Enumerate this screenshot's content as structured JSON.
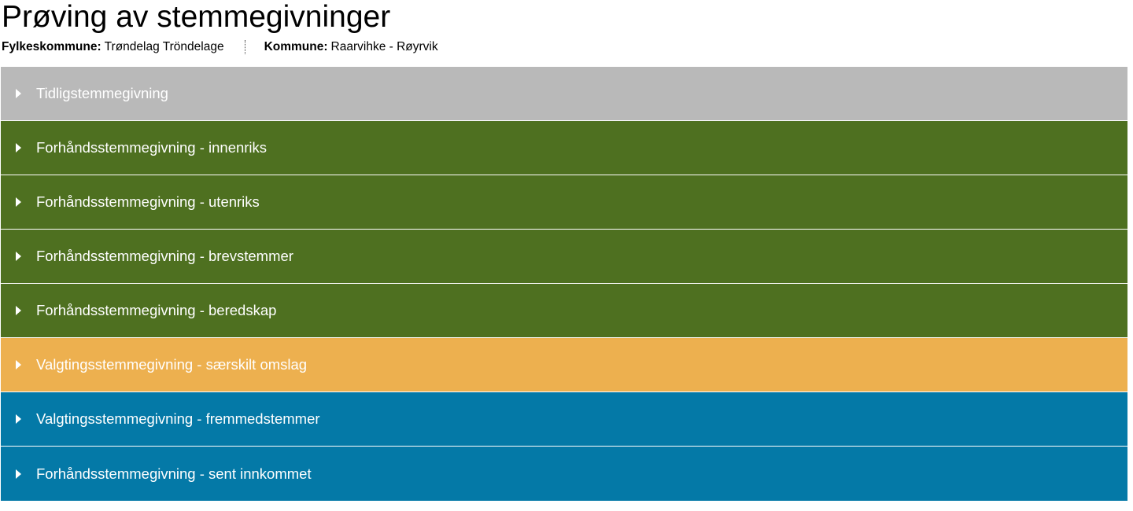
{
  "page": {
    "title": "Prøving av stemmegivninger"
  },
  "context": {
    "fylkeskommune_label": "Fylkeskommune:",
    "fylkeskommune_value": "Trøndelag Tröndelage",
    "kommune_label": "Kommune:",
    "kommune_value": "Raarvihke - Røyrvik"
  },
  "sections": [
    {
      "label": "Tidligstemmegivning",
      "color": "#b9b9b9",
      "icon": "caret-right-icon"
    },
    {
      "label": "Forhåndsstemmegivning - innenriks",
      "color": "#4e7020",
      "icon": "caret-right-icon"
    },
    {
      "label": "Forhåndsstemmegivning - utenriks",
      "color": "#4e7020",
      "icon": "caret-right-icon"
    },
    {
      "label": "Forhåndsstemmegivning - brevstemmer",
      "color": "#4e7020",
      "icon": "caret-right-icon"
    },
    {
      "label": "Forhåndsstemmegivning - beredskap",
      "color": "#4e7020",
      "icon": "caret-right-icon"
    },
    {
      "label": "Valgtingsstemmegivning - særskilt omslag",
      "color": "#edb04f",
      "icon": "caret-right-icon"
    },
    {
      "label": "Valgtingsstemmegivning - fremmedstemmer",
      "color": "#0479a7",
      "icon": "caret-right-icon"
    },
    {
      "label": "Forhåndsstemmegivning - sent innkommet",
      "color": "#0479a7",
      "icon": "caret-right-icon"
    }
  ]
}
